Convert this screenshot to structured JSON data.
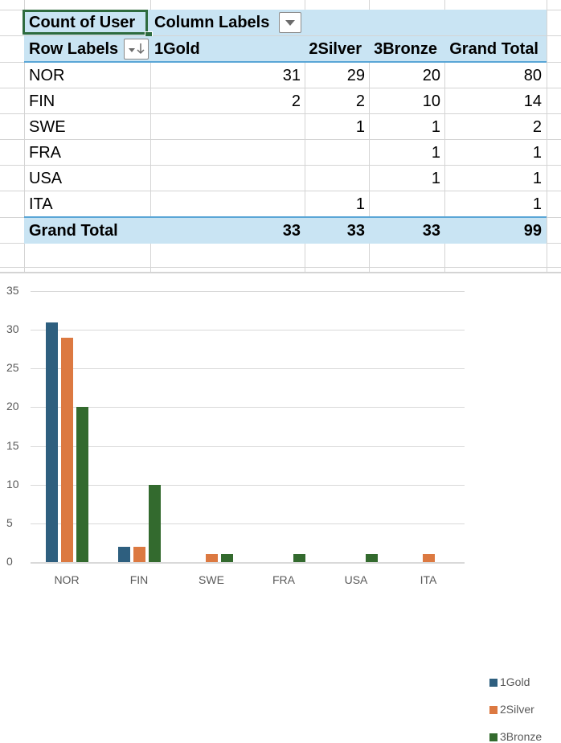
{
  "pivot": {
    "value_field": "Count of User",
    "column_labels": "Column Labels",
    "row_labels": "Row Labels",
    "columns": [
      "1Gold",
      "2Silver",
      "3Bronze",
      "Grand Total"
    ],
    "rows": [
      {
        "label": "NOR",
        "values": [
          "31",
          "29",
          "20",
          "80"
        ]
      },
      {
        "label": "FIN",
        "values": [
          "2",
          "2",
          "10",
          "14"
        ]
      },
      {
        "label": "SWE",
        "values": [
          "",
          "1",
          "1",
          "2"
        ]
      },
      {
        "label": "FRA",
        "values": [
          "",
          "",
          "1",
          "1"
        ]
      },
      {
        "label": "USA",
        "values": [
          "",
          "",
          "1",
          "1"
        ]
      },
      {
        "label": "ITA",
        "values": [
          "",
          "1",
          "",
          "1"
        ]
      }
    ],
    "grand_total": {
      "label": "Grand Total",
      "values": [
        "33",
        "33",
        "33",
        "99"
      ]
    },
    "colors": {
      "header_fill": "#c9e4f3",
      "selection": "#2e6b3e"
    }
  },
  "chart_data": {
    "type": "bar",
    "title": "",
    "xlabel": "",
    "ylabel": "",
    "categories": [
      "NOR",
      "FIN",
      "SWE",
      "FRA",
      "USA",
      "ITA"
    ],
    "series": [
      {
        "name": "1Gold",
        "color": "#2e5f7f",
        "values": [
          31,
          2,
          0,
          0,
          0,
          0
        ]
      },
      {
        "name": "2Silver",
        "color": "#dc7941",
        "values": [
          29,
          2,
          1,
          0,
          0,
          1
        ]
      },
      {
        "name": "3Bronze",
        "color": "#336a2e",
        "values": [
          20,
          10,
          1,
          1,
          1,
          0
        ]
      }
    ],
    "yticks": [
      "0",
      "5",
      "10",
      "15",
      "20",
      "25",
      "30",
      "35"
    ],
    "ylim": [
      0,
      35
    ],
    "grid": true,
    "legend_position": "right"
  }
}
